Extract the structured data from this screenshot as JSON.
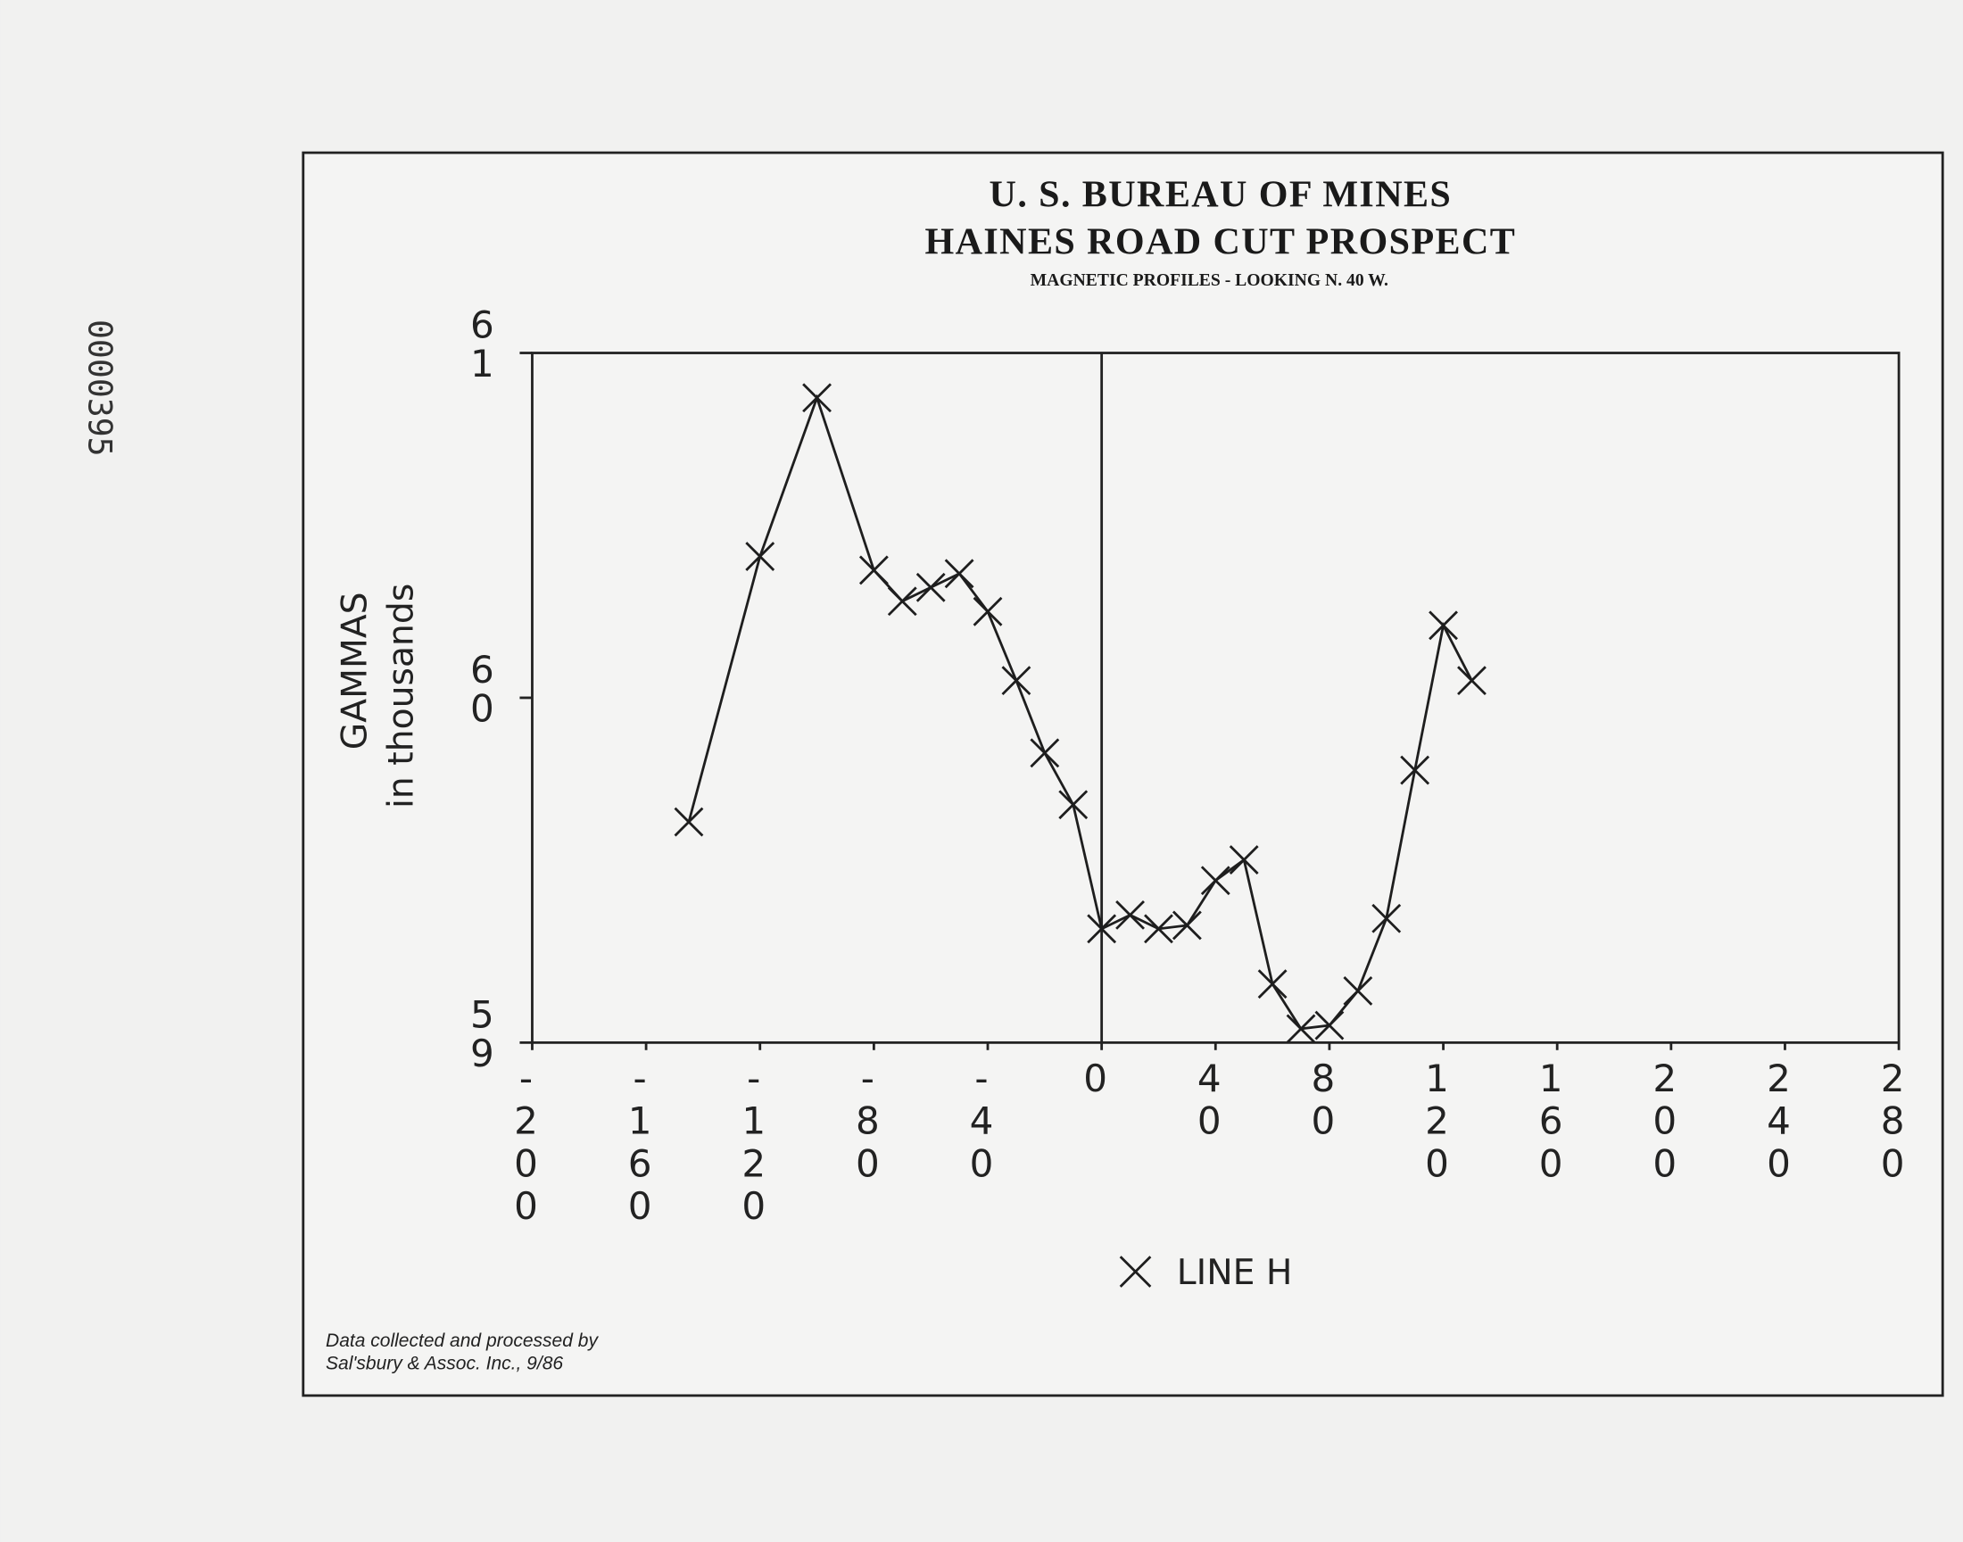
{
  "stamp": "0000395",
  "chart_data": {
    "type": "line",
    "title": "U. S. BUREAU OF MINES",
    "subtitle": "HAINES ROAD CUT PROSPECT",
    "caption": "MAGNETIC PROFILES - LOOKING N. 40 W.",
    "ylabel": [
      "GAMMAS",
      "in thousands"
    ],
    "footnote": [
      "Data collected and processed by",
      "Sal'sbury & Assoc. Inc., 9/86"
    ],
    "x": [
      -145,
      -120,
      -100,
      -80,
      -70,
      -60,
      -50,
      -40,
      -30,
      -20,
      -10,
      0,
      10,
      20,
      30,
      40,
      50,
      60,
      70,
      80,
      90,
      100,
      110,
      120,
      130
    ],
    "series": [
      {
        "name": "LINE H",
        "color": "#1e1e1e",
        "values": [
          59.64,
          60.41,
          60.87,
          60.37,
          60.28,
          60.32,
          60.36,
          60.25,
          60.05,
          59.84,
          59.69,
          59.33,
          59.37,
          59.33,
          59.34,
          59.47,
          59.53,
          59.17,
          59.04,
          59.05,
          59.15,
          59.36,
          59.79,
          60.21,
          60.05
        ]
      }
    ],
    "xlim": [
      -200,
      280
    ],
    "xticks": [
      -200,
      -160,
      -120,
      -80,
      -40,
      0,
      40,
      80,
      120,
      160,
      200,
      240,
      280
    ],
    "ylim": [
      59,
      61
    ],
    "yticks": [
      59,
      60,
      61
    ],
    "marker": "x",
    "grid": false,
    "legend": "bottom"
  }
}
